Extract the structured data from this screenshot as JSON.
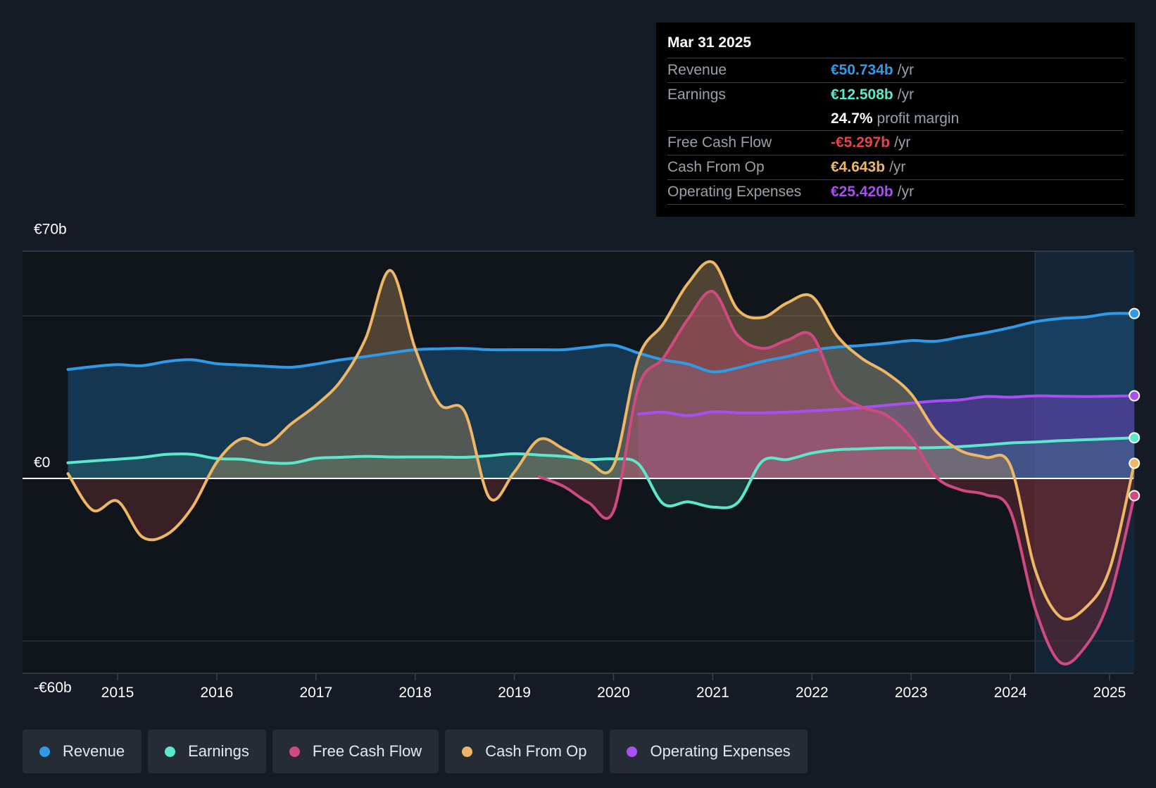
{
  "tooltip": {
    "date": "Mar 31 2025",
    "rows": [
      {
        "label": "Revenue",
        "value": "€50.734b",
        "unit": "/yr",
        "color": "#2f9be8"
      },
      {
        "label": "Earnings",
        "value": "€12.508b",
        "unit": "/yr",
        "color": "#5ce8cc"
      },
      {
        "label": "",
        "value": "24.7%",
        "unit": "profit margin",
        "color": "#ffffff"
      },
      {
        "label": "Free Cash Flow",
        "value": "-€5.297b",
        "unit": "/yr",
        "color": "#e8434f"
      },
      {
        "label": "Cash From Op",
        "value": "€4.643b",
        "unit": "/yr",
        "color": "#eeb766"
      },
      {
        "label": "Operating Expenses",
        "value": "€25.420b",
        "unit": "/yr",
        "color": "#a74ff0"
      }
    ]
  },
  "legend": [
    {
      "label": "Revenue",
      "color": "#2f9be8"
    },
    {
      "label": "Earnings",
      "color": "#5ce8cc"
    },
    {
      "label": "Free Cash Flow",
      "color": "#d04a82"
    },
    {
      "label": "Cash From Op",
      "color": "#eeb766"
    },
    {
      "label": "Operating Expenses",
      "color": "#a74ff0"
    }
  ],
  "chart_data": {
    "type": "area",
    "title": "",
    "xlabel": "",
    "ylabel": "",
    "ylim": [
      -60,
      70
    ],
    "xlim": [
      2014.05,
      2025.25
    ],
    "x_ticks": [
      2015,
      2016,
      2017,
      2018,
      2019,
      2020,
      2021,
      2022,
      2023,
      2024,
      2025
    ],
    "y_tick_labels": [
      {
        "value": 70,
        "label": "€70b"
      },
      {
        "value": 0,
        "label": "€0"
      },
      {
        "value": -60,
        "label": "-€60b"
      }
    ],
    "gridlines_y": [
      50,
      -50
    ],
    "forecast_start": 2024.25,
    "series": [
      {
        "name": "Revenue",
        "color": "#2f9be8",
        "points": [
          [
            2014.5,
            33.5
          ],
          [
            2014.75,
            34.4
          ],
          [
            2015.0,
            35.0
          ],
          [
            2015.25,
            34.7
          ],
          [
            2015.5,
            36.0
          ],
          [
            2015.75,
            36.5
          ],
          [
            2016.0,
            35.3
          ],
          [
            2016.25,
            34.9
          ],
          [
            2016.5,
            34.5
          ],
          [
            2016.75,
            34.2
          ],
          [
            2017.0,
            35.2
          ],
          [
            2017.25,
            36.5
          ],
          [
            2017.5,
            37.5
          ],
          [
            2017.75,
            38.6
          ],
          [
            2018.0,
            39.6
          ],
          [
            2018.25,
            39.9
          ],
          [
            2018.5,
            40.0
          ],
          [
            2018.75,
            39.6
          ],
          [
            2019.0,
            39.6
          ],
          [
            2019.25,
            39.6
          ],
          [
            2019.5,
            39.6
          ],
          [
            2019.75,
            40.4
          ],
          [
            2020.0,
            41.0
          ],
          [
            2020.25,
            38.6
          ],
          [
            2020.5,
            36.5
          ],
          [
            2020.75,
            35.2
          ],
          [
            2021.0,
            32.8
          ],
          [
            2021.25,
            34.0
          ],
          [
            2021.5,
            36.0
          ],
          [
            2021.75,
            37.5
          ],
          [
            2022.0,
            39.4
          ],
          [
            2022.25,
            40.4
          ],
          [
            2022.5,
            40.9
          ],
          [
            2022.75,
            41.6
          ],
          [
            2023.0,
            42.4
          ],
          [
            2023.25,
            42.2
          ],
          [
            2023.5,
            43.5
          ],
          [
            2023.75,
            44.8
          ],
          [
            2024.0,
            46.4
          ],
          [
            2024.25,
            48.2
          ],
          [
            2024.5,
            49.2
          ],
          [
            2024.75,
            49.6
          ],
          [
            2025.0,
            50.7
          ],
          [
            2025.25,
            50.734
          ]
        ]
      },
      {
        "name": "Operating Expenses",
        "color": "#a74ff0",
        "points": [
          [
            2020.25,
            19.8
          ],
          [
            2020.5,
            20.4
          ],
          [
            2020.75,
            19.3
          ],
          [
            2021.0,
            20.5
          ],
          [
            2021.25,
            20.2
          ],
          [
            2021.5,
            20.2
          ],
          [
            2021.75,
            20.4
          ],
          [
            2022.0,
            20.8
          ],
          [
            2022.25,
            21.2
          ],
          [
            2022.5,
            21.8
          ],
          [
            2022.75,
            22.5
          ],
          [
            2023.0,
            23.2
          ],
          [
            2023.25,
            23.8
          ],
          [
            2023.5,
            24.2
          ],
          [
            2023.75,
            25.2
          ],
          [
            2024.0,
            25.0
          ],
          [
            2024.25,
            25.4
          ],
          [
            2024.5,
            25.3
          ],
          [
            2024.75,
            25.2
          ],
          [
            2025.0,
            25.3
          ],
          [
            2025.25,
            25.42
          ]
        ]
      },
      {
        "name": "Earnings",
        "color": "#5ce8cc",
        "points": [
          [
            2014.5,
            4.8
          ],
          [
            2014.75,
            5.4
          ],
          [
            2015.0,
            5.9
          ],
          [
            2015.25,
            6.5
          ],
          [
            2015.5,
            7.4
          ],
          [
            2015.75,
            7.4
          ],
          [
            2016.0,
            6.1
          ],
          [
            2016.25,
            5.9
          ],
          [
            2016.5,
            4.9
          ],
          [
            2016.75,
            4.7
          ],
          [
            2017.0,
            6.2
          ],
          [
            2017.25,
            6.5
          ],
          [
            2017.5,
            6.8
          ],
          [
            2017.75,
            6.6
          ],
          [
            2018.0,
            6.6
          ],
          [
            2018.25,
            6.6
          ],
          [
            2018.5,
            6.5
          ],
          [
            2018.75,
            7.0
          ],
          [
            2019.0,
            7.6
          ],
          [
            2019.25,
            7.2
          ],
          [
            2019.5,
            6.8
          ],
          [
            2019.75,
            5.8
          ],
          [
            2020.0,
            6.0
          ],
          [
            2020.25,
            4.5
          ],
          [
            2020.5,
            -7.8
          ],
          [
            2020.75,
            -7.2
          ],
          [
            2021.0,
            -8.8
          ],
          [
            2021.25,
            -7.5
          ],
          [
            2021.5,
            5.3
          ],
          [
            2021.75,
            5.8
          ],
          [
            2022.0,
            7.8
          ],
          [
            2022.25,
            8.8
          ],
          [
            2022.5,
            9.1
          ],
          [
            2022.75,
            9.4
          ],
          [
            2023.0,
            9.4
          ],
          [
            2023.25,
            9.5
          ],
          [
            2023.5,
            9.8
          ],
          [
            2023.75,
            10.3
          ],
          [
            2024.0,
            10.9
          ],
          [
            2024.25,
            11.2
          ],
          [
            2024.5,
            11.6
          ],
          [
            2024.75,
            11.9
          ],
          [
            2025.0,
            12.2
          ],
          [
            2025.25,
            12.508
          ]
        ]
      },
      {
        "name": "Cash From Op",
        "color": "#eeb766",
        "points": [
          [
            2014.5,
            1.5
          ],
          [
            2014.75,
            -9.8
          ],
          [
            2015.0,
            -7.0
          ],
          [
            2015.25,
            -18.0
          ],
          [
            2015.5,
            -17.2
          ],
          [
            2015.75,
            -9.0
          ],
          [
            2016.0,
            5.0
          ],
          [
            2016.25,
            12.2
          ],
          [
            2016.5,
            10.4
          ],
          [
            2016.75,
            16.8
          ],
          [
            2017.0,
            22.5
          ],
          [
            2017.25,
            30.0
          ],
          [
            2017.5,
            43.0
          ],
          [
            2017.75,
            64.0
          ],
          [
            2018.0,
            40.0
          ],
          [
            2018.25,
            22.8
          ],
          [
            2018.5,
            20.5
          ],
          [
            2018.75,
            -6.0
          ],
          [
            2019.0,
            2.0
          ],
          [
            2019.25,
            12.0
          ],
          [
            2019.5,
            9.0
          ],
          [
            2019.75,
            5.0
          ],
          [
            2020.0,
            4.0
          ],
          [
            2020.25,
            37.0
          ],
          [
            2020.5,
            47.5
          ],
          [
            2020.75,
            60.0
          ],
          [
            2021.0,
            66.5
          ],
          [
            2021.25,
            52.0
          ],
          [
            2021.5,
            49.5
          ],
          [
            2021.75,
            54.0
          ],
          [
            2022.0,
            56.0
          ],
          [
            2022.25,
            44.0
          ],
          [
            2022.5,
            37.0
          ],
          [
            2022.75,
            32.5
          ],
          [
            2023.0,
            26.0
          ],
          [
            2023.25,
            14.5
          ],
          [
            2023.5,
            8.5
          ],
          [
            2023.75,
            6.5
          ],
          [
            2024.0,
            4.0
          ],
          [
            2024.25,
            -28.0
          ],
          [
            2024.5,
            -42.5
          ],
          [
            2024.75,
            -40.0
          ],
          [
            2025.0,
            -28.0
          ],
          [
            2025.25,
            4.643
          ]
        ]
      },
      {
        "name": "Free Cash Flow",
        "color": "#d04a82",
        "points": [
          [
            2019.25,
            0.5
          ],
          [
            2019.5,
            -2.5
          ],
          [
            2019.75,
            -7.5
          ],
          [
            2020.0,
            -10.0
          ],
          [
            2020.25,
            28.0
          ],
          [
            2020.5,
            37.0
          ],
          [
            2020.75,
            49.0
          ],
          [
            2021.0,
            57.5
          ],
          [
            2021.25,
            44.0
          ],
          [
            2021.5,
            40.0
          ],
          [
            2021.75,
            42.5
          ],
          [
            2022.0,
            44.0
          ],
          [
            2022.25,
            27.5
          ],
          [
            2022.5,
            22.0
          ],
          [
            2022.75,
            19.5
          ],
          [
            2023.0,
            12.5
          ],
          [
            2023.25,
            0.5
          ],
          [
            2023.5,
            -3.5
          ],
          [
            2023.75,
            -5.0
          ],
          [
            2024.0,
            -10.0
          ],
          [
            2024.25,
            -40.0
          ],
          [
            2024.5,
            -56.5
          ],
          [
            2024.75,
            -52.0
          ],
          [
            2025.0,
            -37.0
          ],
          [
            2025.25,
            -5.297
          ]
        ]
      }
    ]
  }
}
